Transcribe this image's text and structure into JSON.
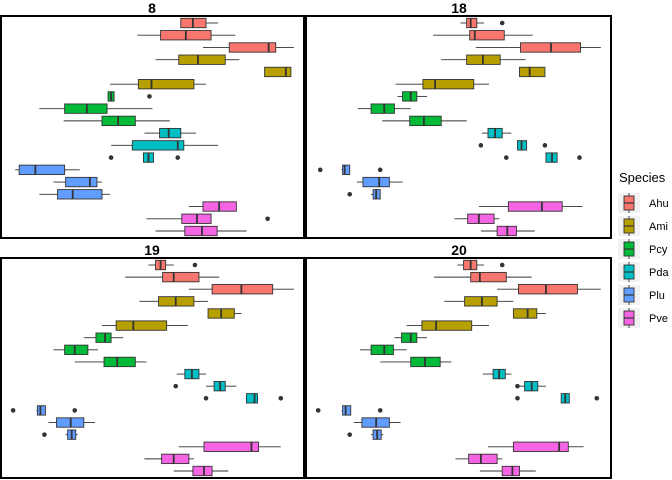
{
  "chart_data": {
    "type": "box",
    "orientation": "horizontal",
    "legend": {
      "title": "Species",
      "placement": "right",
      "entries": [
        {
          "name": "Ahu",
          "color": "#F8766D"
        },
        {
          "name": "Ami",
          "color": "#B79F00"
        },
        {
          "name": "Pcy",
          "color": "#00BA38"
        },
        {
          "name": "Pda",
          "color": "#00BFC4"
        },
        {
          "name": "Plu",
          "color": "#619CFF"
        },
        {
          "name": "Pve",
          "color": "#F564E3"
        }
      ]
    },
    "grid": false,
    "x_range": [
      0,
      300
    ],
    "n_rows": 18,
    "panels": [
      {
        "title": "8",
        "boxes": [
          {
            "species": "Ahu",
            "row": 0,
            "whislo": 178,
            "q1": 178,
            "med": 190,
            "q3": 203,
            "whishi": 215,
            "outliers": []
          },
          {
            "species": "Ahu",
            "row": 1,
            "whislo": 135,
            "q1": 158,
            "med": 183,
            "q3": 208,
            "whishi": 232,
            "outliers": []
          },
          {
            "species": "Ahu",
            "row": 2,
            "whislo": 200,
            "q1": 226,
            "med": 265,
            "q3": 272,
            "whishi": 290,
            "outliers": []
          },
          {
            "species": "Ami",
            "row": 3,
            "whislo": 153,
            "q1": 176,
            "med": 195,
            "q3": 222,
            "whishi": 236,
            "outliers": []
          },
          {
            "species": "Ami",
            "row": 4,
            "whislo": 261,
            "q1": 261,
            "med": 282,
            "q3": 287,
            "whishi": 287,
            "outliers": []
          },
          {
            "species": "Ami",
            "row": 5,
            "whislo": 108,
            "q1": 136,
            "med": 149,
            "q3": 191,
            "whishi": 203,
            "outliers": []
          },
          {
            "species": "Pcy",
            "row": 6,
            "whislo": 106,
            "q1": 106,
            "med": 109,
            "q3": 112,
            "whishi": 112,
            "outliers": [
              147
            ]
          },
          {
            "species": "Pcy",
            "row": 7,
            "whislo": 38,
            "q1": 63,
            "med": 85,
            "q3": 105,
            "whishi": 150,
            "outliers": []
          },
          {
            "species": "Pcy",
            "row": 8,
            "whislo": 62,
            "q1": 100,
            "med": 116,
            "q3": 133,
            "whishi": 167,
            "outliers": []
          },
          {
            "species": "Pda",
            "row": 9,
            "whislo": 142,
            "q1": 157,
            "med": 166,
            "q3": 178,
            "whishi": 193,
            "outliers": []
          },
          {
            "species": "Pda",
            "row": 10,
            "whislo": 109,
            "q1": 130,
            "med": 175,
            "q3": 181,
            "whishi": 215,
            "outliers": []
          },
          {
            "species": "Pda",
            "row": 11,
            "whislo": 141,
            "q1": 141,
            "med": 146,
            "q3": 151,
            "whishi": 151,
            "outliers": [
              109,
              175
            ]
          },
          {
            "species": "Plu",
            "row": 12,
            "whislo": 14,
            "q1": 18,
            "med": 34,
            "q3": 63,
            "whishi": 78,
            "outliers": []
          },
          {
            "species": "Plu",
            "row": 13,
            "whislo": 52,
            "q1": 64,
            "med": 88,
            "q3": 95,
            "whishi": 100,
            "outliers": []
          },
          {
            "species": "Plu",
            "row": 14,
            "whislo": 38,
            "q1": 56,
            "med": 71,
            "q3": 100,
            "whishi": 108,
            "outliers": []
          },
          {
            "species": "Pve",
            "row": 15,
            "whislo": 186,
            "q1": 200,
            "med": 216,
            "q3": 233,
            "whishi": 233,
            "outliers": []
          },
          {
            "species": "Pve",
            "row": 16,
            "whislo": 144,
            "q1": 179,
            "med": 194,
            "q3": 208,
            "whishi": 208,
            "outliers": [
              264
            ]
          },
          {
            "species": "Pve",
            "row": 17,
            "whislo": 153,
            "q1": 182,
            "med": 199,
            "q3": 214,
            "whishi": 243,
            "outliers": []
          }
        ]
      },
      {
        "title": "18",
        "boxes": [
          {
            "species": "Ahu",
            "row": 0,
            "whislo": 152,
            "q1": 158,
            "med": 162,
            "q3": 168,
            "whishi": 175,
            "outliers": [
              193
            ]
          },
          {
            "species": "Ahu",
            "row": 1,
            "whislo": 125,
            "q1": 161,
            "med": 166,
            "q3": 195,
            "whishi": 223,
            "outliers": []
          },
          {
            "species": "Ahu",
            "row": 2,
            "whislo": 167,
            "q1": 211,
            "med": 241,
            "q3": 270,
            "whishi": 290,
            "outliers": []
          },
          {
            "species": "Ami",
            "row": 3,
            "whislo": 133,
            "q1": 158,
            "med": 174,
            "q3": 191,
            "whishi": 216,
            "outliers": []
          },
          {
            "species": "Ami",
            "row": 4,
            "whislo": 210,
            "q1": 210,
            "med": 220,
            "q3": 235,
            "whishi": 235,
            "outliers": []
          },
          {
            "species": "Ami",
            "row": 5,
            "whislo": 88,
            "q1": 115,
            "med": 127,
            "q3": 165,
            "whishi": 180,
            "outliers": []
          },
          {
            "species": "Pcy",
            "row": 6,
            "whislo": 90,
            "q1": 95,
            "med": 103,
            "q3": 109,
            "whishi": 119,
            "outliers": []
          },
          {
            "species": "Pcy",
            "row": 7,
            "whislo": 51,
            "q1": 64,
            "med": 77,
            "q3": 87,
            "whishi": 103,
            "outliers": []
          },
          {
            "species": "Pcy",
            "row": 8,
            "whislo": 75,
            "q1": 102,
            "med": 116,
            "q3": 133,
            "whishi": 158,
            "outliers": []
          },
          {
            "species": "Pda",
            "row": 9,
            "whislo": 173,
            "q1": 179,
            "med": 186,
            "q3": 193,
            "whishi": 202,
            "outliers": []
          },
          {
            "species": "Pda",
            "row": 10,
            "whislo": 208,
            "q1": 208,
            "med": 212,
            "q3": 217,
            "whishi": 217,
            "outliers": [
              172,
              235
            ]
          },
          {
            "species": "Pda",
            "row": 11,
            "whislo": 236,
            "q1": 236,
            "med": 242,
            "q3": 247,
            "whishi": 247,
            "outliers": [
              197,
              269
            ]
          },
          {
            "species": "Plu",
            "row": 12,
            "whislo": 35,
            "q1": 36,
            "med": 38,
            "q3": 43,
            "whishi": 43,
            "outliers": [
              14,
              73
            ]
          },
          {
            "species": "Plu",
            "row": 13,
            "whislo": 50,
            "q1": 56,
            "med": 72,
            "q3": 82,
            "whishi": 95,
            "outliers": []
          },
          {
            "species": "Plu",
            "row": 14,
            "whislo": 64,
            "q1": 66,
            "med": 69,
            "q3": 73,
            "whishi": 73,
            "outliers": [
              43
            ]
          },
          {
            "species": "Pve",
            "row": 15,
            "whislo": 170,
            "q1": 199,
            "med": 232,
            "q3": 252,
            "whishi": 272,
            "outliers": []
          },
          {
            "species": "Pve",
            "row": 16,
            "whislo": 146,
            "q1": 159,
            "med": 170,
            "q3": 185,
            "whishi": 190,
            "outliers": []
          },
          {
            "species": "Pve",
            "row": 17,
            "whislo": 172,
            "q1": 188,
            "med": 198,
            "q3": 207,
            "whishi": 225,
            "outliers": []
          }
        ]
      },
      {
        "title": "19",
        "boxes": [
          {
            "species": "Ahu",
            "row": 0,
            "whislo": 146,
            "q1": 153,
            "med": 158,
            "q3": 163,
            "whishi": 171,
            "outliers": [
              192
            ]
          },
          {
            "species": "Ahu",
            "row": 1,
            "whislo": 123,
            "q1": 160,
            "med": 171,
            "q3": 196,
            "whishi": 216,
            "outliers": []
          },
          {
            "species": "Ahu",
            "row": 2,
            "whislo": 186,
            "q1": 209,
            "med": 238,
            "q3": 269,
            "whishi": 290,
            "outliers": []
          },
          {
            "species": "Ami",
            "row": 3,
            "whislo": 137,
            "q1": 156,
            "med": 173,
            "q3": 191,
            "whishi": 205,
            "outliers": []
          },
          {
            "species": "Ami",
            "row": 4,
            "whislo": 205,
            "q1": 205,
            "med": 218,
            "q3": 231,
            "whishi": 238,
            "outliers": []
          },
          {
            "species": "Ami",
            "row": 5,
            "whislo": 100,
            "q1": 114,
            "med": 131,
            "q3": 164,
            "whishi": 185,
            "outliers": []
          },
          {
            "species": "Pcy",
            "row": 6,
            "whislo": 82,
            "q1": 94,
            "med": 103,
            "q3": 109,
            "whishi": 121,
            "outliers": []
          },
          {
            "species": "Pcy",
            "row": 7,
            "whislo": 52,
            "q1": 63,
            "med": 73,
            "q3": 86,
            "whishi": 96,
            "outliers": []
          },
          {
            "species": "Pcy",
            "row": 8,
            "whislo": 73,
            "q1": 102,
            "med": 115,
            "q3": 133,
            "whishi": 144,
            "outliers": []
          },
          {
            "species": "Pda",
            "row": 9,
            "whislo": 174,
            "q1": 182,
            "med": 189,
            "q3": 196,
            "whishi": 203,
            "outliers": []
          },
          {
            "species": "Pda",
            "row": 10,
            "whislo": 203,
            "q1": 211,
            "med": 217,
            "q3": 222,
            "whishi": 233,
            "outliers": [
              173
            ]
          },
          {
            "species": "Pda",
            "row": 11,
            "whislo": 243,
            "q1": 243,
            "med": 251,
            "q3": 254,
            "whishi": 254,
            "outliers": [
              203,
              277
            ]
          },
          {
            "species": "Plu",
            "row": 12,
            "whislo": 35,
            "q1": 36,
            "med": 39,
            "q3": 44,
            "whishi": 44,
            "outliers": [
              12,
              73
            ]
          },
          {
            "species": "Plu",
            "row": 13,
            "whislo": 47,
            "q1": 55,
            "med": 69,
            "q3": 82,
            "whishi": 93,
            "outliers": []
          },
          {
            "species": "Plu",
            "row": 14,
            "whislo": 64,
            "q1": 66,
            "med": 70,
            "q3": 74,
            "whishi": 76,
            "outliers": [
              43
            ]
          },
          {
            "species": "Pve",
            "row": 15,
            "whislo": 176,
            "q1": 201,
            "med": 248,
            "q3": 255,
            "whishi": 277,
            "outliers": []
          },
          {
            "species": "Pve",
            "row": 16,
            "whislo": 142,
            "q1": 159,
            "med": 171,
            "q3": 186,
            "whishi": 191,
            "outliers": []
          },
          {
            "species": "Pve",
            "row": 17,
            "whislo": 171,
            "q1": 190,
            "med": 201,
            "q3": 209,
            "whishi": 225,
            "outliers": []
          }
        ]
      },
      {
        "title": "20",
        "boxes": [
          {
            "species": "Ahu",
            "row": 0,
            "whislo": 149,
            "q1": 155,
            "med": 162,
            "q3": 168,
            "whishi": 175,
            "outliers": [
              193
            ]
          },
          {
            "species": "Ahu",
            "row": 1,
            "whislo": 126,
            "q1": 162,
            "med": 171,
            "q3": 197,
            "whishi": 222,
            "outliers": []
          },
          {
            "species": "Ahu",
            "row": 2,
            "whislo": 188,
            "q1": 209,
            "med": 236,
            "q3": 267,
            "whishi": 290,
            "outliers": []
          },
          {
            "species": "Ami",
            "row": 3,
            "whislo": 136,
            "q1": 156,
            "med": 173,
            "q3": 188,
            "whishi": 204,
            "outliers": []
          },
          {
            "species": "Ami",
            "row": 4,
            "whislo": 204,
            "q1": 204,
            "med": 218,
            "q3": 227,
            "whishi": 236,
            "outliers": []
          },
          {
            "species": "Ami",
            "row": 5,
            "whislo": 99,
            "q1": 114,
            "med": 128,
            "q3": 163,
            "whishi": 180,
            "outliers": []
          },
          {
            "species": "Pcy",
            "row": 6,
            "whislo": 87,
            "q1": 94,
            "med": 103,
            "q3": 109,
            "whishi": 119,
            "outliers": []
          },
          {
            "species": "Pcy",
            "row": 7,
            "whislo": 53,
            "q1": 64,
            "med": 77,
            "q3": 86,
            "whishi": 99,
            "outliers": []
          },
          {
            "species": "Pcy",
            "row": 8,
            "whislo": 73,
            "q1": 103,
            "med": 117,
            "q3": 132,
            "whishi": 143,
            "outliers": []
          },
          {
            "species": "Pda",
            "row": 9,
            "whislo": 174,
            "q1": 184,
            "med": 190,
            "q3": 196,
            "whishi": 202,
            "outliers": []
          },
          {
            "species": "Pda",
            "row": 10,
            "whislo": 208,
            "q1": 215,
            "med": 222,
            "q3": 228,
            "whishi": 236,
            "outliers": [
              208
            ]
          },
          {
            "species": "Pda",
            "row": 11,
            "whislo": 251,
            "q1": 251,
            "med": 255,
            "q3": 259,
            "whishi": 259,
            "outliers": [
              208,
              286
            ]
          },
          {
            "species": "Plu",
            "row": 12,
            "whislo": 35,
            "q1": 36,
            "med": 39,
            "q3": 44,
            "whishi": 44,
            "outliers": [
              12,
              73
            ]
          },
          {
            "species": "Plu",
            "row": 13,
            "whislo": 47,
            "q1": 55,
            "med": 69,
            "q3": 82,
            "whishi": 93,
            "outliers": []
          },
          {
            "species": "Plu",
            "row": 14,
            "whislo": 64,
            "q1": 66,
            "med": 70,
            "q3": 74,
            "whishi": 76,
            "outliers": [
              43
            ]
          },
          {
            "species": "Pve",
            "row": 15,
            "whislo": 179,
            "q1": 204,
            "med": 249,
            "q3": 258,
            "whishi": 273,
            "outliers": []
          },
          {
            "species": "Pve",
            "row": 16,
            "whislo": 147,
            "q1": 160,
            "med": 172,
            "q3": 188,
            "whishi": 193,
            "outliers": []
          },
          {
            "species": "Pve",
            "row": 17,
            "whislo": 171,
            "q1": 193,
            "med": 203,
            "q3": 210,
            "whishi": 226,
            "outliers": []
          }
        ]
      }
    ]
  }
}
